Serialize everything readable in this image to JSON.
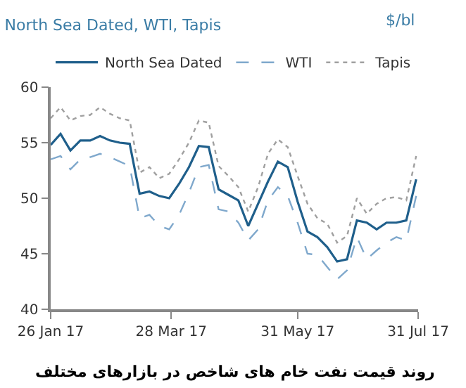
{
  "chart_data": {
    "type": "line",
    "title": "North Sea Dated, WTI, Tapis",
    "ylabel": "$/bl",
    "annotations": [
      "روند قیمت نفت خام های شاخص در بازارهای مختلف"
    ],
    "x": [
      "2017-01-26",
      "2017-01-31",
      "2017-02-05",
      "2017-02-10",
      "2017-02-15",
      "2017-02-20",
      "2017-02-25",
      "2017-03-02",
      "2017-03-07",
      "2017-03-12",
      "2017-03-17",
      "2017-03-22",
      "2017-03-27",
      "2017-04-01",
      "2017-04-06",
      "2017-04-11",
      "2017-04-16",
      "2017-04-21",
      "2017-04-26",
      "2017-05-01",
      "2017-05-06",
      "2017-05-11",
      "2017-05-16",
      "2017-05-21",
      "2017-05-26",
      "2017-05-31",
      "2017-06-05",
      "2017-06-10",
      "2017-06-15",
      "2017-06-20",
      "2017-06-25",
      "2017-06-30",
      "2017-07-05",
      "2017-07-10",
      "2017-07-15",
      "2017-07-20",
      "2017-07-25",
      "2017-07-30"
    ],
    "series": [
      {
        "name": "North Sea Dated",
        "color": "#1f5f8b",
        "line_style": "solid",
        "values": [
          54.8,
          55.8,
          54.3,
          55.2,
          55.2,
          55.6,
          55.2,
          55,
          54.9,
          50.4,
          50.6,
          50.2,
          50,
          51.3,
          52.8,
          54.7,
          54.6,
          50.8,
          50.3,
          49.8,
          47.5,
          49.5,
          51.5,
          53.3,
          52.8,
          49.7,
          47,
          46.5,
          45.6,
          44.3,
          44.5,
          48,
          47.8,
          47.2,
          47.8,
          47.8,
          48,
          51.7
        ]
      },
      {
        "name": "WTI",
        "color": "#7fa8cc",
        "line_style": "dashed",
        "values": [
          53.5,
          53.8,
          52.6,
          53.5,
          53.7,
          54,
          53.7,
          53.3,
          52.9,
          48.2,
          48.5,
          47.5,
          47.2,
          48.5,
          50.5,
          52.8,
          53,
          49,
          48.8,
          47.8,
          46.2,
          47.2,
          49.8,
          51,
          50.2,
          47.8,
          45,
          44.9,
          43.8,
          42.7,
          43.5,
          46.5,
          44.5,
          45.3,
          46,
          46.5,
          46.2,
          50.2
        ]
      },
      {
        "name": "Tapis",
        "color": "#a0a0a0",
        "line_style": "dotted",
        "values": [
          57.2,
          58.2,
          57,
          57.4,
          57.5,
          58.2,
          57.6,
          57.2,
          57,
          52.3,
          52.8,
          51.8,
          52.2,
          53.5,
          55,
          57,
          56.8,
          52.9,
          52,
          51,
          48.8,
          51,
          54,
          55.3,
          54.6,
          52,
          49.5,
          48.2,
          47.7,
          46,
          46.6,
          50,
          48.6,
          49.5,
          50,
          50.1,
          49.8,
          53.8
        ]
      }
    ],
    "xlim": [
      "2017-01-26",
      "2017-07-31"
    ],
    "xticks": [
      {
        "value": "2017-01-26",
        "label": "26 Jan 17"
      },
      {
        "value": "2017-03-28",
        "label": "28 Mar 17"
      },
      {
        "value": "2017-05-31",
        "label": "31 May 17"
      },
      {
        "value": "2017-07-31",
        "label": "31 Jul 17"
      }
    ],
    "ylim": [
      40,
      60
    ],
    "yticks": [
      40,
      45,
      50,
      55,
      60
    ],
    "legend": "top",
    "marker": "none"
  }
}
